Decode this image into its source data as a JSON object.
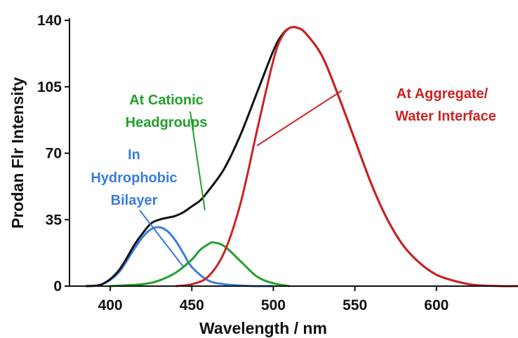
{
  "chart_data": {
    "type": "line",
    "title": "",
    "xlabel": "Wavelength / nm",
    "ylabel": "Prodan Flr Intensity",
    "xlim": [
      375,
      650
    ],
    "ylim": [
      0,
      140
    ],
    "xticks": [
      400,
      450,
      500,
      550,
      600
    ],
    "yticks": [
      0,
      35,
      70,
      105,
      140
    ],
    "grid": false,
    "legend": "none",
    "series": [
      {
        "color": "#111111",
        "x": [
          385,
          395,
          405,
          415,
          420,
          425,
          430,
          435,
          440,
          445,
          450,
          455,
          460,
          470,
          480,
          490,
          500,
          505,
          510,
          515,
          520,
          530,
          540,
          550,
          560,
          570,
          580,
          590,
          600,
          610,
          620,
          625
        ],
        "y": [
          0,
          1,
          8,
          22,
          28,
          33,
          35,
          36,
          37,
          39,
          42,
          45,
          50,
          62,
          80,
          102,
          124,
          132,
          136,
          136,
          133,
          121,
          100,
          77,
          54,
          35,
          21,
          12,
          6,
          3,
          1,
          0.5
        ]
      },
      {
        "color": "#3a7be0",
        "x": [
          385,
          395,
          405,
          415,
          420,
          425,
          430,
          435,
          440,
          445,
          450,
          460,
          470,
          480,
          490,
          500
        ],
        "y": [
          0,
          1,
          7,
          20,
          26,
          30,
          31,
          29,
          24,
          17,
          10,
          3,
          1,
          0.3,
          0,
          0
        ]
      },
      {
        "color": "#22a02a",
        "x": [
          400,
          420,
          430,
          440,
          450,
          455,
          460,
          463,
          470,
          480,
          490,
          500,
          510
        ],
        "y": [
          0,
          1,
          3,
          7,
          14,
          19,
          22,
          23,
          21,
          13,
          5,
          1.5,
          0
        ]
      },
      {
        "color": "#cc2222",
        "x": [
          440,
          450,
          460,
          470,
          480,
          490,
          500,
          505,
          510,
          515,
          520,
          530,
          540,
          550,
          560,
          570,
          580,
          590,
          600,
          610,
          620,
          625,
          640,
          650
        ],
        "y": [
          0,
          1,
          5,
          18,
          44,
          82,
          119,
          131,
          136,
          136,
          133,
          121,
          100,
          77,
          54,
          35,
          21,
          12,
          6,
          3,
          1,
          0.5,
          0,
          0
        ]
      }
    ],
    "annotations": [
      {
        "text_lines": [
          "At Aggregate/",
          "Water Interface"
        ],
        "color": "#cc2222",
        "pointer": {
          "from": [
            542,
            103
          ],
          "to": [
            490,
            74
          ]
        }
      },
      {
        "text_lines": [
          "At Cationic",
          "Headgroups"
        ],
        "color": "#22a02a",
        "pointer": {
          "from": [
            449,
            92
          ],
          "to": [
            458,
            40
          ]
        }
      },
      {
        "text_lines": [
          "In",
          "Hydrophobic",
          "Bilayer"
        ],
        "color": "#3a7be0",
        "pointer": {
          "from": [
            418,
            40
          ],
          "to": [
            445,
            10
          ]
        }
      }
    ]
  }
}
